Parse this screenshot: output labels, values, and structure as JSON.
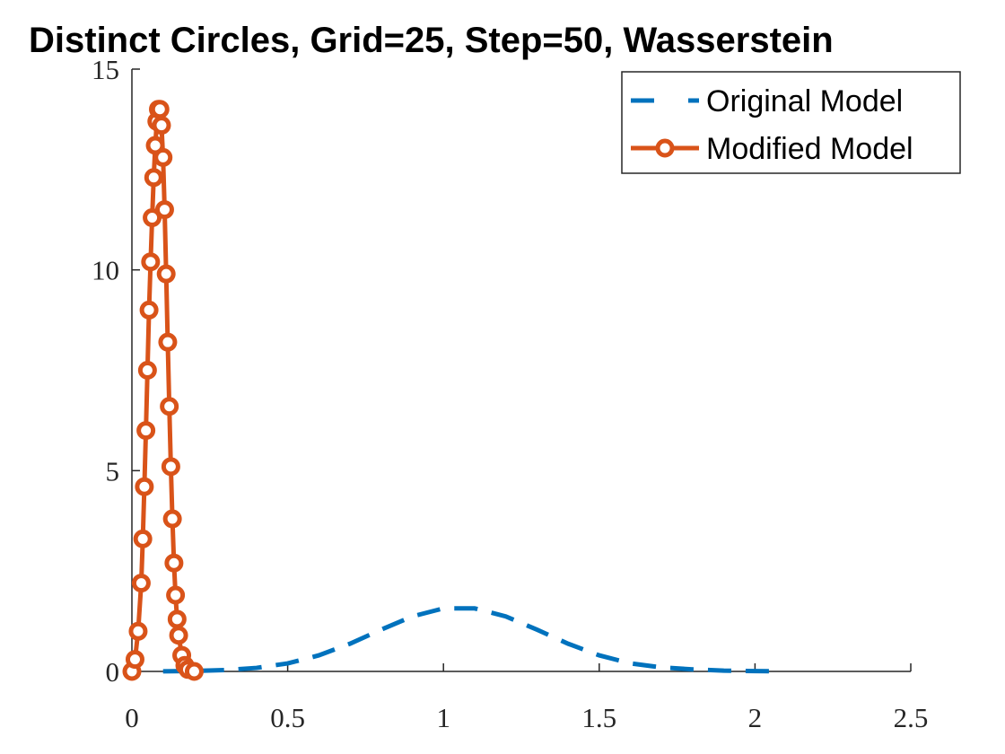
{
  "chart_data": {
    "type": "line",
    "title": "Distinct Circles, Grid=25, Step=50, Wasserstein",
    "xlim": [
      0,
      2.5
    ],
    "ylim": [
      0,
      15
    ],
    "xticks": [
      0,
      0.5,
      1,
      1.5,
      2,
      2.5
    ],
    "yticks": [
      0,
      5,
      10,
      15
    ],
    "legend": "northeast",
    "series": [
      {
        "name": "Original Model",
        "color": "#0072bd",
        "line_style": "dashed",
        "x": [
          0.1,
          0.2,
          0.3,
          0.4,
          0.5,
          0.6,
          0.7,
          0.8,
          0.9,
          1.0,
          1.1,
          1.2,
          1.3,
          1.4,
          1.5,
          1.6,
          1.7,
          1.8,
          1.9,
          2.0,
          2.07
        ],
        "values": [
          0.003,
          0.011,
          0.034,
          0.088,
          0.2,
          0.4,
          0.69,
          1.04,
          1.37,
          1.57,
          1.57,
          1.37,
          1.04,
          0.69,
          0.4,
          0.2,
          0.1,
          0.05,
          0.02,
          0.008,
          0.003
        ]
      },
      {
        "name": "Modified Model",
        "color": "#d95319",
        "line_style": "solid",
        "marker": "circle",
        "x": [
          0,
          0.01,
          0.02,
          0.03,
          0.035,
          0.04,
          0.045,
          0.05,
          0.055,
          0.06,
          0.065,
          0.07,
          0.075,
          0.08,
          0.085,
          0.09,
          0.095,
          0.1,
          0.105,
          0.11,
          0.115,
          0.12,
          0.125,
          0.13,
          0.135,
          0.14,
          0.145,
          0.15,
          0.16,
          0.17,
          0.18,
          0.2
        ],
        "values": [
          0,
          0.3,
          1.0,
          2.2,
          3.3,
          4.6,
          6.0,
          7.5,
          9.0,
          10.2,
          11.3,
          12.3,
          13.1,
          13.7,
          14.0,
          14.0,
          13.6,
          12.8,
          11.5,
          9.9,
          8.2,
          6.6,
          5.1,
          3.8,
          2.7,
          1.9,
          1.3,
          0.9,
          0.4,
          0.15,
          0.05,
          0
        ]
      }
    ]
  }
}
